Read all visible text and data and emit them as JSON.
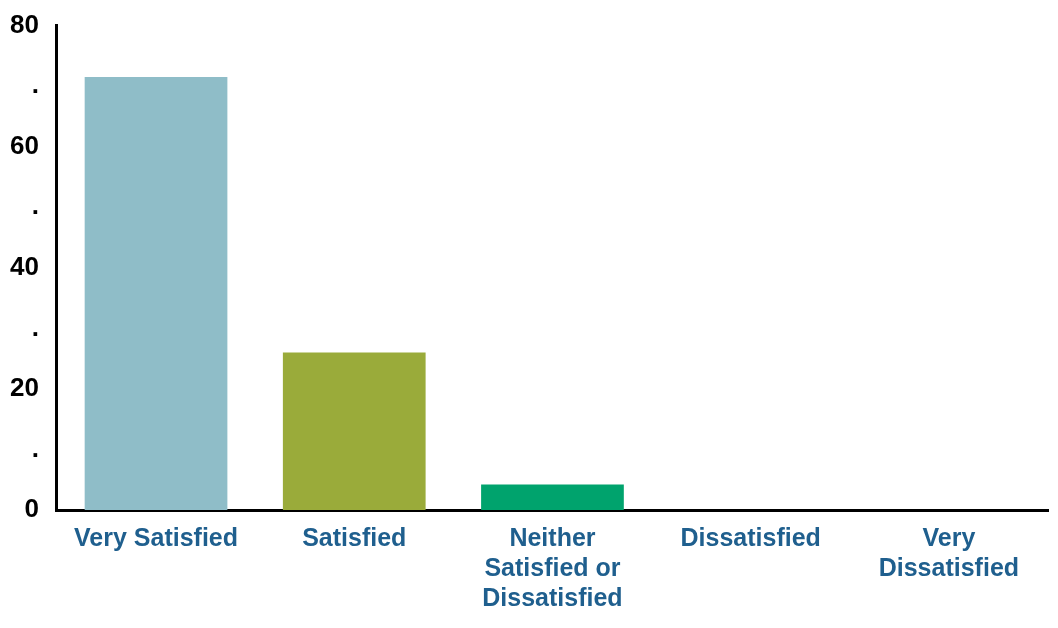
{
  "chart_data": {
    "type": "bar",
    "categories": [
      "Very Satisfied",
      "Satisfied",
      "Neither Satisfied or Dissatisfied",
      "Dissatisfied",
      "Very Dissatisfied"
    ],
    "values": [
      71.5,
      26,
      4.2,
      0,
      0
    ],
    "colors": [
      "#8fbdc8",
      "#9aab3a",
      "#00a36d",
      "#00a36d",
      "#00a36d"
    ],
    "ylim": [
      0,
      80
    ],
    "yticks": [
      0,
      {
        "value": 10,
        "label": "."
      },
      20,
      {
        "value": 30,
        "label": "."
      },
      40,
      {
        "value": 50,
        "label": "."
      },
      60,
      {
        "value": 70,
        "label": "."
      },
      80
    ],
    "grid": false
  }
}
